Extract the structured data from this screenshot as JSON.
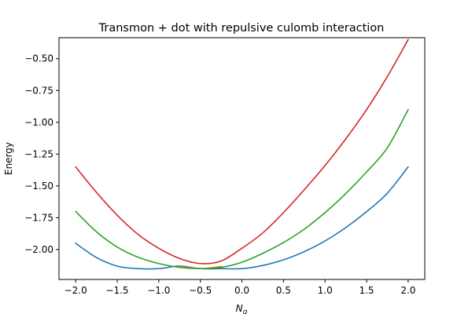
{
  "chart_data": {
    "type": "line",
    "title": "Transmon + dot with repulsive culomb interaction",
    "xlabel": "N_g",
    "xlabel_base": "N",
    "xlabel_sub": "g",
    "ylabel": "Energy",
    "xlim": [
      -2.2,
      2.2
    ],
    "ylim": [
      -2.235,
      -0.335
    ],
    "xticks": [
      -2.0,
      -1.5,
      -1.0,
      -0.5,
      0.0,
      0.5,
      1.0,
      1.5,
      2.0
    ],
    "xtick_labels": [
      "−2.0",
      "−1.5",
      "−1.0",
      "−0.5",
      "0.0",
      "0.5",
      "1.0",
      "1.5",
      "2.0"
    ],
    "yticks": [
      -2.0,
      -1.75,
      -1.5,
      -1.25,
      -1.0,
      -0.75,
      -0.5
    ],
    "ytick_labels": [
      "−2.00",
      "−1.75",
      "−1.50",
      "−1.25",
      "−1.00",
      "−0.75",
      "−0.50"
    ],
    "grid": false,
    "x": [
      -2.0,
      -1.75,
      -1.5,
      -1.25,
      -1.0,
      -0.75,
      -0.5,
      -0.25,
      0.0,
      0.25,
      0.5,
      0.75,
      1.0,
      1.25,
      1.5,
      1.75,
      2.0
    ],
    "series": [
      {
        "color": "#1f77b4",
        "values": [
          -1.95,
          -2.0625,
          -2.13,
          -2.15,
          -2.15,
          -2.13,
          -2.15,
          -2.15,
          -2.15,
          -2.125,
          -2.081,
          -2.016,
          -1.932,
          -1.827,
          -1.702,
          -1.557,
          -1.35
        ]
      },
      {
        "color": "#ff7f0e",
        "values": [
          null,
          null,
          null,
          null,
          null,
          -2.133,
          -2.15,
          -2.133,
          null,
          null,
          null,
          null,
          null,
          null,
          null,
          null,
          null
        ]
      },
      {
        "color": "#2ca02c",
        "values": [
          -1.7,
          -1.86,
          -1.98,
          -2.06,
          -2.11,
          -2.14,
          -2.15,
          -2.14,
          -2.1,
          -2.03,
          -1.945,
          -1.84,
          -1.71,
          -1.56,
          -1.39,
          -1.2,
          -0.9
        ]
      },
      {
        "color": "#d62728",
        "values": [
          -1.35,
          -1.55,
          -1.73,
          -1.88,
          -1.99,
          -2.07,
          -2.11,
          -2.09,
          -1.99,
          -1.87,
          -1.71,
          -1.53,
          -1.34,
          -1.13,
          -0.9,
          -0.64,
          -0.35
        ]
      }
    ]
  }
}
